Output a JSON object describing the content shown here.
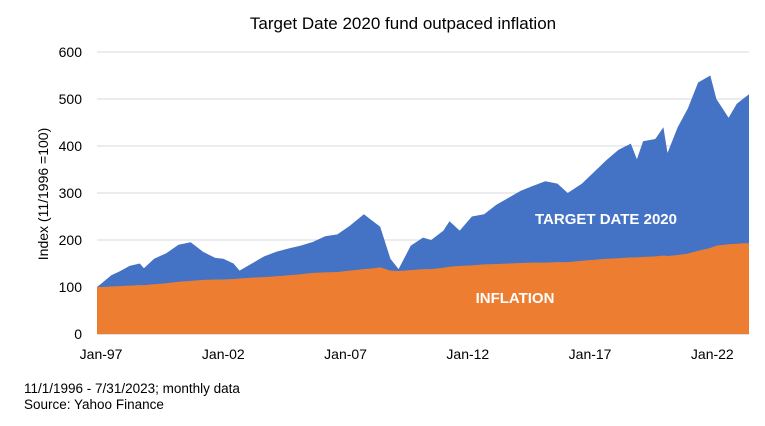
{
  "chart_data": {
    "type": "area",
    "stacked": false,
    "title": "Target Date 2020 fund outpaced inflation",
    "ylabel": "Index (11/1996 =100)",
    "xlabel": "",
    "ylim": [
      0,
      600
    ],
    "yticks": [
      "0",
      "100",
      "200",
      "300",
      "400",
      "500",
      "600"
    ],
    "xticks": [
      "Jan-97",
      "Jan-02",
      "Jan-07",
      "Jan-12",
      "Jan-17",
      "Jan-22"
    ],
    "grid": "horizontal",
    "legend": "none",
    "x": [
      "1996-11",
      "1997-01",
      "1997-06",
      "1997-10",
      "1998-03",
      "1998-08",
      "1998-10",
      "1999-03",
      "1999-09",
      "2000-03",
      "2000-09",
      "2001-03",
      "2001-09",
      "2002-01",
      "2002-06",
      "2002-09",
      "2003-03",
      "2003-09",
      "2004-03",
      "2004-09",
      "2005-03",
      "2005-09",
      "2006-03",
      "2006-09",
      "2007-03",
      "2007-10",
      "2008-03",
      "2008-06",
      "2008-11",
      "2009-03",
      "2009-09",
      "2010-03",
      "2010-07",
      "2011-01",
      "2011-04",
      "2011-09",
      "2012-03",
      "2012-09",
      "2013-03",
      "2013-09",
      "2014-03",
      "2014-09",
      "2015-03",
      "2015-09",
      "2016-02",
      "2016-09",
      "2017-03",
      "2017-09",
      "2018-03",
      "2018-09",
      "2018-12",
      "2019-03",
      "2019-09",
      "2020-01",
      "2020-03",
      "2020-08",
      "2021-01",
      "2021-06",
      "2021-12",
      "2022-03",
      "2022-09",
      "2023-01",
      "2023-04",
      "2023-07"
    ],
    "series": [
      {
        "name": "TARGET DATE 2020",
        "color": "#4472C4",
        "values": [
          100,
          107,
          125,
          133,
          145,
          150,
          140,
          160,
          172,
          190,
          195,
          175,
          162,
          160,
          150,
          135,
          150,
          165,
          175,
          182,
          188,
          196,
          208,
          212,
          230,
          255,
          238,
          228,
          160,
          138,
          188,
          205,
          200,
          220,
          240,
          220,
          250,
          255,
          275,
          290,
          305,
          315,
          325,
          320,
          300,
          320,
          345,
          370,
          392,
          405,
          372,
          410,
          415,
          440,
          385,
          440,
          480,
          535,
          550,
          500,
          460,
          490,
          500,
          510
        ]
      },
      {
        "name": "INFLATION",
        "color": "#ED7D31",
        "values": [
          100,
          100,
          101,
          102,
          103,
          104,
          104,
          106,
          108,
          111,
          113,
          115,
          116,
          116,
          117,
          118,
          120,
          121,
          123,
          125,
          127,
          130,
          131,
          132,
          135,
          138,
          140,
          142,
          135,
          134,
          136,
          138,
          138,
          141,
          143,
          145,
          146,
          148,
          149,
          150,
          151,
          152,
          152,
          153,
          153,
          156,
          158,
          160,
          161,
          163,
          163,
          164,
          165,
          167,
          166,
          168,
          171,
          177,
          183,
          188,
          191,
          192,
          193,
          193
        ]
      }
    ]
  },
  "labels": {
    "target": "TARGET DATE 2020",
    "inflation": "INFLATION"
  },
  "notes": {
    "line1": "11/1/1996 - 7/31/2023; monthly data",
    "line2": "Source: Yahoo Finance"
  }
}
